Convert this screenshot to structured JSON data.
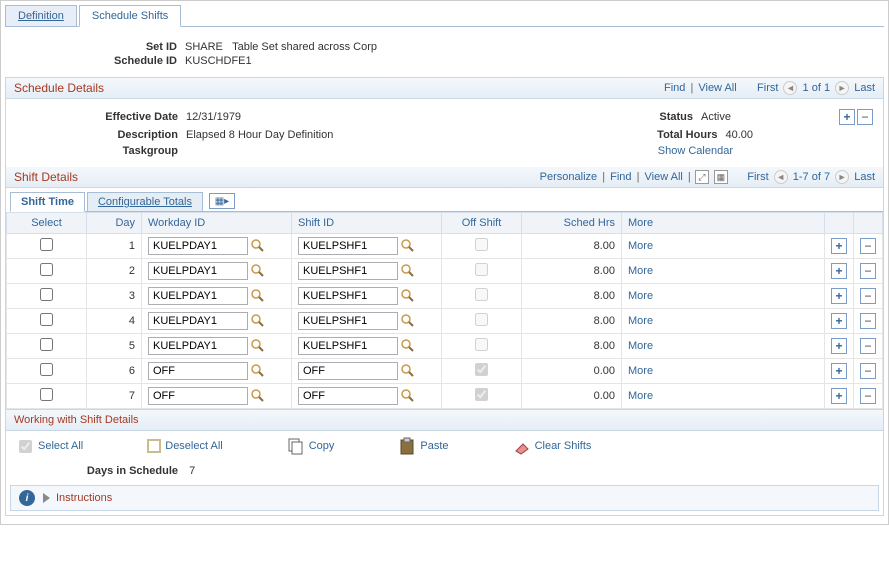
{
  "tabs": {
    "definition": "Definition",
    "schedule_shifts": "Schedule Shifts"
  },
  "header": {
    "set_id_label": "Set ID",
    "set_id": "SHARE",
    "set_id_desc": "Table Set shared across Corp",
    "schedule_id_label": "Schedule ID",
    "schedule_id": "KUSCHDFE1"
  },
  "schedule_details": {
    "title": "Schedule Details",
    "links": {
      "find": "Find",
      "view_all": "View All",
      "first": "First",
      "count": "1 of 1",
      "last": "Last"
    },
    "effective_date_label": "Effective Date",
    "effective_date": "12/31/1979",
    "status_label": "Status",
    "status": "Active",
    "description_label": "Description",
    "description": "Elapsed 8 Hour Day Definition",
    "total_hours_label": "Total Hours",
    "total_hours": "40.00",
    "taskgroup_label": "Taskgroup",
    "show_calendar": "Show Calendar"
  },
  "shift_details": {
    "title": "Shift Details",
    "links": {
      "personalize": "Personalize",
      "find": "Find",
      "view_all": "View All",
      "first": "First",
      "count": "1-7 of 7",
      "last": "Last"
    },
    "sub_tabs": {
      "shift_time": "Shift Time",
      "configurable_totals": "Configurable Totals"
    },
    "columns": {
      "select": "Select",
      "day": "Day",
      "workday_id": "Workday ID",
      "shift_id": "Shift ID",
      "off_shift": "Off Shift",
      "sched_hrs": "Sched Hrs",
      "more": "More"
    },
    "rows": [
      {
        "day": "1",
        "workday_id": "KUELPDAY1",
        "shift_id": "KUELPSHF1",
        "off_shift": false,
        "sched_hrs": "8.00",
        "more": "More"
      },
      {
        "day": "2",
        "workday_id": "KUELPDAY1",
        "shift_id": "KUELPSHF1",
        "off_shift": false,
        "sched_hrs": "8.00",
        "more": "More"
      },
      {
        "day": "3",
        "workday_id": "KUELPDAY1",
        "shift_id": "KUELPSHF1",
        "off_shift": false,
        "sched_hrs": "8.00",
        "more": "More"
      },
      {
        "day": "4",
        "workday_id": "KUELPDAY1",
        "shift_id": "KUELPSHF1",
        "off_shift": false,
        "sched_hrs": "8.00",
        "more": "More"
      },
      {
        "day": "5",
        "workday_id": "KUELPDAY1",
        "shift_id": "KUELPSHF1",
        "off_shift": false,
        "sched_hrs": "8.00",
        "more": "More"
      },
      {
        "day": "6",
        "workday_id": "OFF",
        "shift_id": "OFF",
        "off_shift": true,
        "sched_hrs": "0.00",
        "more": "More"
      },
      {
        "day": "7",
        "workday_id": "OFF",
        "shift_id": "OFF",
        "off_shift": true,
        "sched_hrs": "0.00",
        "more": "More"
      }
    ]
  },
  "working": {
    "title": "Working with Shift Details",
    "select_all": "Select All",
    "deselect_all": "Deselect All",
    "copy": "Copy",
    "paste": "Paste",
    "clear_shifts": "Clear Shifts",
    "days_label": "Days in Schedule",
    "days": "7",
    "instructions": "Instructions"
  }
}
